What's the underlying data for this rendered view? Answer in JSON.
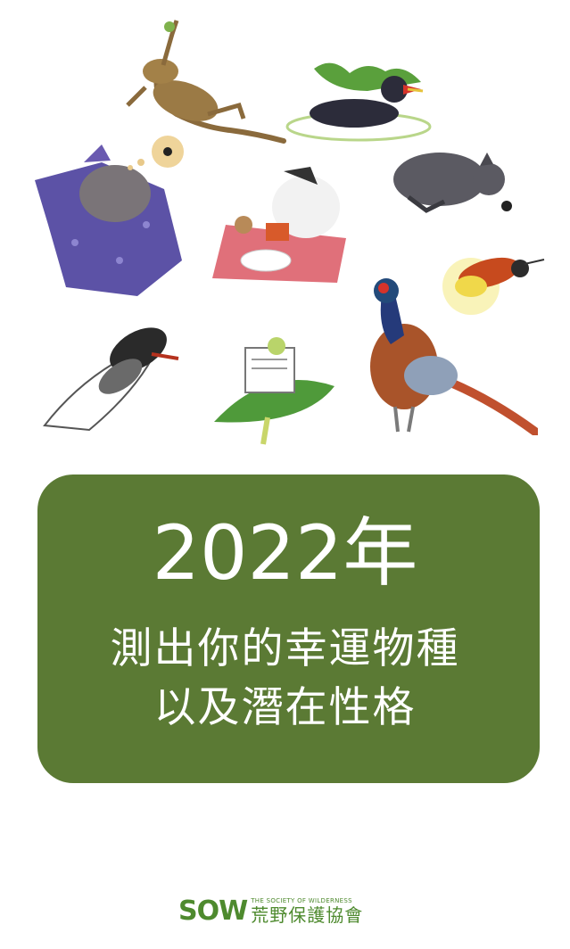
{
  "card": {
    "title": "2022年",
    "subtitle_line1": "測出你的幸運物種",
    "subtitle_line2": "以及潛在性格"
  },
  "footer": {
    "logo_text": "SOW",
    "org_en": "THE SOCIETY OF WILDERNESS",
    "org_zh": "荒野保護協會"
  },
  "colors": {
    "card_bg": "#5b7a34",
    "logo_green": "#4e8a2e"
  },
  "illustrations": [
    "lizard-icon",
    "moorhen-icon",
    "sleeping-bat-icon",
    "bird-picnic-icon",
    "bat-icon",
    "firefly-icon",
    "cicada-icon",
    "frog-newspaper-icon",
    "pheasant-icon"
  ]
}
